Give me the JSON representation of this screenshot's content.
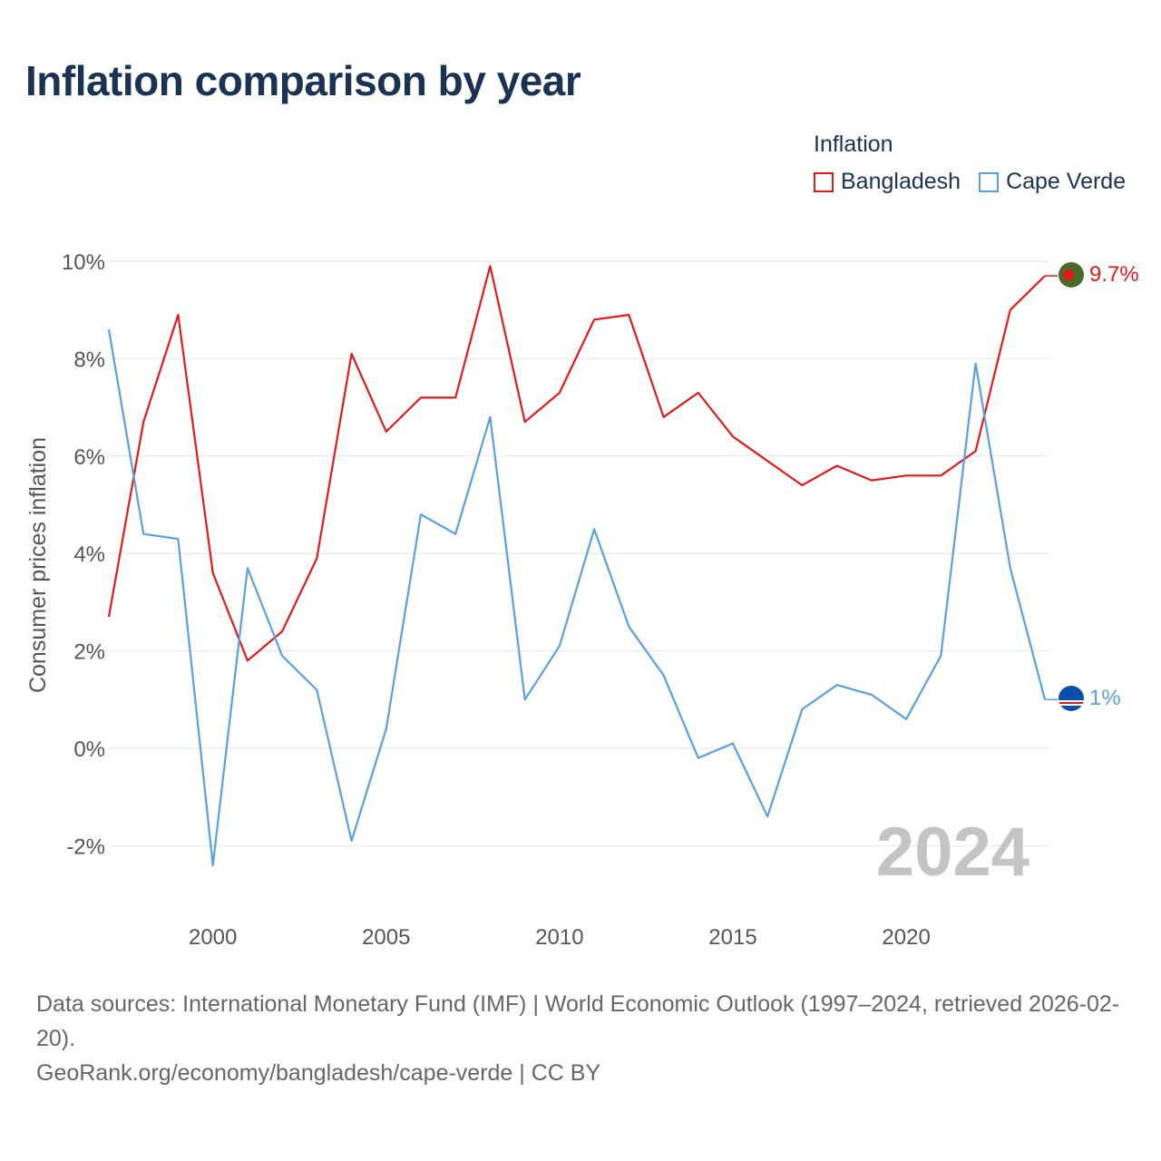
{
  "title": "Inflation comparison by year",
  "legend": {
    "title": "Inflation",
    "items": [
      {
        "label": "Bangladesh",
        "color": "#e31a1c"
      },
      {
        "label": "Cape Verde",
        "color": "#5aa0e0"
      }
    ]
  },
  "watermark_year": "2024",
  "footer": {
    "sources": "Data sources: International Monetary Fund (IMF) | World Economic Outlook (1997–2024, retrieved 2026-02-20).",
    "credit": "GeoRank.org/economy/bangladesh/cape-verde | CC BY"
  },
  "chart_data": {
    "type": "line",
    "title": "Inflation comparison by year",
    "ylabel": "Consumer prices inflation",
    "xlabel": "",
    "xlim": [
      1997,
      2024
    ],
    "ylim": [
      -3,
      10
    ],
    "yticks": [
      10,
      8,
      6,
      4,
      2,
      0,
      -2
    ],
    "ytick_labels": [
      "10%",
      "8%",
      "6%",
      "4%",
      "2%",
      "0%",
      "-2%"
    ],
    "xticks": [
      2000,
      2005,
      2010,
      2015,
      2020
    ],
    "xtick_labels": [
      "2000",
      "2005",
      "2010",
      "2015",
      "2020"
    ],
    "grid": true,
    "legend_position": "top-right",
    "x": [
      1997,
      1998,
      1999,
      2000,
      2001,
      2002,
      2003,
      2004,
      2005,
      2006,
      2007,
      2008,
      2009,
      2010,
      2011,
      2012,
      2013,
      2014,
      2015,
      2016,
      2017,
      2018,
      2019,
      2020,
      2021,
      2022,
      2023,
      2024
    ],
    "series": [
      {
        "name": "Bangladesh",
        "color": "#e31a1c",
        "end_label": "9.7%",
        "values": [
          2.7,
          6.7,
          8.9,
          3.6,
          1.8,
          2.4,
          3.9,
          8.1,
          6.5,
          7.2,
          7.2,
          9.9,
          6.7,
          7.3,
          8.8,
          8.9,
          6.8,
          7.3,
          6.4,
          5.9,
          5.4,
          5.8,
          5.5,
          5.6,
          5.6,
          6.1,
          9.0,
          9.7
        ]
      },
      {
        "name": "Cape Verde",
        "color": "#5aa0e0",
        "end_label": "1%",
        "values": [
          8.6,
          4.4,
          4.3,
          -2.4,
          3.7,
          1.9,
          1.2,
          -1.9,
          0.4,
          4.8,
          4.4,
          6.8,
          1.0,
          2.1,
          4.5,
          2.5,
          1.5,
          -0.2,
          0.1,
          -1.4,
          0.8,
          1.3,
          1.1,
          0.6,
          1.9,
          7.9,
          3.7,
          1.0
        ]
      }
    ]
  }
}
